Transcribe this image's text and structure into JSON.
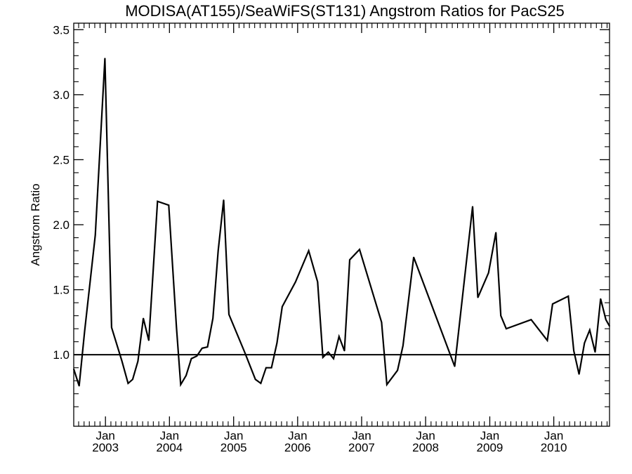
{
  "chart_data": {
    "type": "line",
    "title": "MODISA(AT155)/SeaWiFS(ST131)  Angstrom Ratios for PacS25",
    "xlabel": "",
    "ylabel": "Angstrom Ratio",
    "xlim": [
      "2002-07-04",
      "2010-11-15"
    ],
    "ylim": [
      0.45,
      3.55
    ],
    "y_ticks": [
      1.0,
      1.5,
      2.0,
      2.5,
      3.0,
      3.5
    ],
    "y_tick_labels": [
      "1.0",
      "1.5",
      "2.0",
      "2.5",
      "3.0",
      "3.5"
    ],
    "x_ticks": [
      {
        "date": "2003-01-01",
        "month": "Jan",
        "year": "2003"
      },
      {
        "date": "2004-01-01",
        "month": "Jan",
        "year": "2004"
      },
      {
        "date": "2005-01-01",
        "month": "Jan",
        "year": "2005"
      },
      {
        "date": "2006-01-01",
        "month": "Jan",
        "year": "2006"
      },
      {
        "date": "2007-01-01",
        "month": "Jan",
        "year": "2007"
      },
      {
        "date": "2008-01-01",
        "month": "Jan",
        "year": "2008"
      },
      {
        "date": "2009-01-01",
        "month": "Jan",
        "year": "2009"
      },
      {
        "date": "2010-01-01",
        "month": "Jan",
        "year": "2010"
      }
    ],
    "reference_line": 1.0,
    "grid": false,
    "series": [
      {
        "points": [
          [
            "2002-07-04",
            0.89
          ],
          [
            "2002-08-04",
            0.76
          ],
          [
            "2002-09-04",
            1.18
          ],
          [
            "2002-11-04",
            1.92
          ],
          [
            "2002-12-29",
            3.28
          ],
          [
            "2003-02-05",
            1.21
          ],
          [
            "2003-04-05",
            0.95
          ],
          [
            "2003-05-10",
            0.78
          ],
          [
            "2003-06-05",
            0.81
          ],
          [
            "2003-07-05",
            0.95
          ],
          [
            "2003-08-05",
            1.28
          ],
          [
            "2003-09-05",
            1.11
          ],
          [
            "2003-10-25",
            2.18
          ],
          [
            "2003-12-28",
            2.15
          ],
          [
            "2004-02-10",
            1.21
          ],
          [
            "2004-03-05",
            0.77
          ],
          [
            "2004-04-05",
            0.84
          ],
          [
            "2004-05-05",
            0.97
          ],
          [
            "2004-06-05",
            0.99
          ],
          [
            "2004-07-05",
            1.05
          ],
          [
            "2004-08-05",
            1.06
          ],
          [
            "2004-09-05",
            1.28
          ],
          [
            "2004-10-05",
            1.8
          ],
          [
            "2004-11-05",
            2.19
          ],
          [
            "2004-12-05",
            1.31
          ],
          [
            "2005-03-05",
            1.02
          ],
          [
            "2005-05-05",
            0.81
          ],
          [
            "2005-06-05",
            0.78
          ],
          [
            "2005-07-05",
            0.9
          ],
          [
            "2005-08-05",
            0.9
          ],
          [
            "2005-09-05",
            1.09
          ],
          [
            "2005-10-05",
            1.37
          ],
          [
            "2005-12-20",
            1.56
          ],
          [
            "2006-03-05",
            1.8
          ],
          [
            "2006-04-25",
            1.56
          ],
          [
            "2006-05-25",
            0.98
          ],
          [
            "2006-06-25",
            1.02
          ],
          [
            "2006-07-25",
            0.97
          ],
          [
            "2006-08-25",
            1.14
          ],
          [
            "2006-09-25",
            1.03
          ],
          [
            "2006-10-25",
            1.73
          ],
          [
            "2006-12-20",
            1.81
          ],
          [
            "2007-04-25",
            1.25
          ],
          [
            "2007-05-25",
            0.77
          ],
          [
            "2007-07-25",
            0.88
          ],
          [
            "2007-08-25",
            1.07
          ],
          [
            "2007-10-25",
            1.75
          ],
          [
            "2008-06-15",
            0.91
          ],
          [
            "2008-09-25",
            2.14
          ],
          [
            "2008-10-25",
            1.44
          ],
          [
            "2008-12-25",
            1.63
          ],
          [
            "2009-02-05",
            1.94
          ],
          [
            "2009-03-05",
            1.3
          ],
          [
            "2009-04-05",
            1.2
          ],
          [
            "2009-08-25",
            1.27
          ],
          [
            "2009-11-25",
            1.11
          ],
          [
            "2009-12-25",
            1.39
          ],
          [
            "2010-03-25",
            1.45
          ],
          [
            "2010-04-25",
            1.03
          ],
          [
            "2010-05-25",
            0.85
          ],
          [
            "2010-06-25",
            1.09
          ],
          [
            "2010-07-25",
            1.19
          ],
          [
            "2010-08-25",
            1.02
          ],
          [
            "2010-09-25",
            1.43
          ],
          [
            "2010-10-25",
            1.27
          ],
          [
            "2010-11-15",
            1.22
          ]
        ]
      }
    ]
  }
}
